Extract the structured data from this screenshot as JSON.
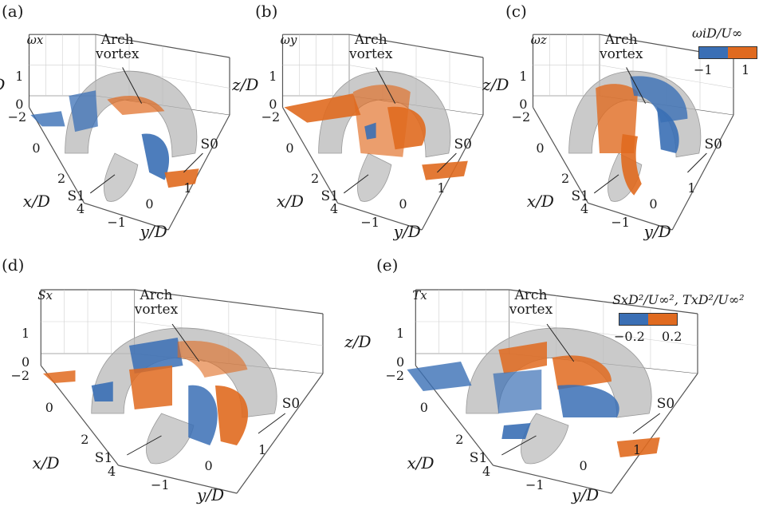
{
  "panels": [
    {
      "label": "(a)",
      "component": "ωx",
      "z_label": "z/D",
      "x_label": "x/D",
      "y_label": "y/D",
      "z_ticks": [
        "1",
        "0"
      ],
      "x_ticks": [
        "−2",
        "0",
        "2",
        "4"
      ],
      "y_ticks": [
        "−1",
        "0",
        "1"
      ],
      "arch_label_line1": "Arch",
      "arch_label_line2": "vortex",
      "s0_label": "S0",
      "s1_label": "S1"
    },
    {
      "label": "(b)",
      "component": "ωy",
      "z_label": "z/D",
      "x_label": "x/D",
      "y_label": "y/D",
      "z_ticks": [
        "1",
        "0"
      ],
      "x_ticks": [
        "−2",
        "0",
        "2",
        "4"
      ],
      "y_ticks": [
        "−1",
        "0",
        "1"
      ],
      "arch_label_line1": "Arch",
      "arch_label_line2": "vortex",
      "s0_label": "S0",
      "s1_label": "S1"
    },
    {
      "label": "(c)",
      "component": "ωz",
      "z_label": "z/D",
      "x_label": "x/D",
      "y_label": "y/D",
      "z_ticks": [
        "1",
        "0"
      ],
      "x_ticks": [
        "−2",
        "0",
        "2",
        "4"
      ],
      "y_ticks": [
        "−1",
        "0",
        "1"
      ],
      "arch_label_line1": "Arch",
      "arch_label_line2": "vortex",
      "s0_label": "S0",
      "s1_label": "S1"
    },
    {
      "label": "(d)",
      "component": "Sx",
      "z_label": "z/D",
      "x_label": "x/D",
      "y_label": "y/D",
      "z_ticks": [
        "1",
        "0"
      ],
      "x_ticks": [
        "−2",
        "0",
        "2",
        "4"
      ],
      "y_ticks": [
        "−1",
        "0",
        "1"
      ],
      "arch_label_line1": "Arch",
      "arch_label_line2": "vortex",
      "s0_label": "S0",
      "s1_label": "S1"
    },
    {
      "label": "(e)",
      "component": "Tx",
      "z_label": "z/D",
      "x_label": "x/D",
      "y_label": "y/D",
      "z_ticks": [
        "1",
        "0"
      ],
      "x_ticks": [
        "−2",
        "0",
        "2",
        "4"
      ],
      "y_ticks": [
        "−1",
        "0",
        "1"
      ],
      "arch_label_line1": "Arch",
      "arch_label_line2": "vortex",
      "s0_label": "S0",
      "s1_label": "S1"
    }
  ],
  "colorbar_top": {
    "title": "ωiD/U∞",
    "min_label": "−1",
    "max_label": "1"
  },
  "colorbar_bottom": {
    "title": "SxD²/U∞², TxD²/U∞²",
    "min_label": "−0.2",
    "max_label": "0.2"
  },
  "colors": {
    "negative": "#3a6fb5",
    "positive": "#e06a1f",
    "isosurface": "#b8b8b8",
    "axes": "#555555"
  }
}
